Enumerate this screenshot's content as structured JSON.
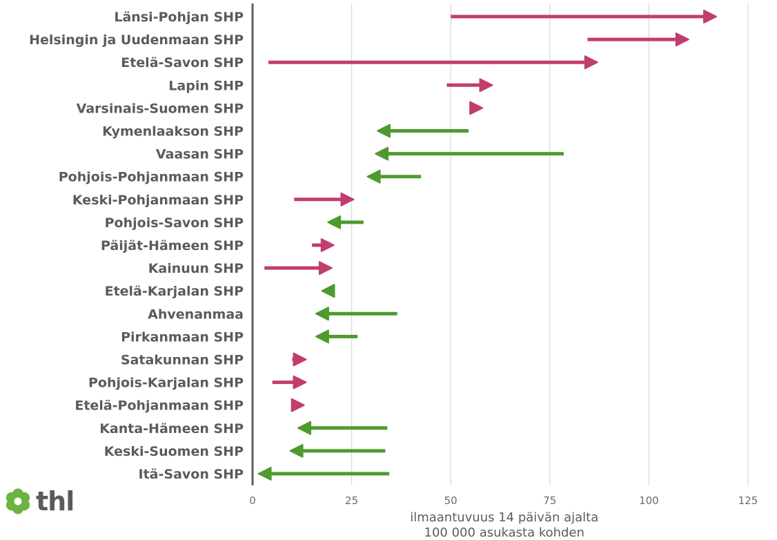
{
  "logo": {
    "text": "thl",
    "icon": "flower-icon",
    "color": "#6cb33f"
  },
  "colors": {
    "increase": "#c13d6f",
    "decrease": "#4f9a2e",
    "axis": "#5f5f5f",
    "grid": "#d9d9d9",
    "text": "#5b5b5b"
  },
  "chart_data": {
    "type": "arrow",
    "xlabel": "ilmaantuvuus 14 päivän ajalta\n100 000 asukasta kohden",
    "xlim": [
      0,
      125
    ],
    "xticks": [
      0,
      25,
      50,
      75,
      100,
      125
    ],
    "grid": true,
    "series": [
      {
        "category": "Länsi-Pohjan SHP",
        "from": 50,
        "to": 117
      },
      {
        "category": "Helsingin ja Uudenmaan SHP",
        "from": 84.5,
        "to": 110
      },
      {
        "category": "Etelä-Savon SHP",
        "from": 4,
        "to": 87
      },
      {
        "category": "Lapin SHP",
        "from": 49,
        "to": 60.5
      },
      {
        "category": "Varsinais-Suomen SHP",
        "from": 55.5,
        "to": 58
      },
      {
        "category": "Kymenlaakson SHP",
        "from": 54.5,
        "to": 31.5
      },
      {
        "category": "Vaasan SHP",
        "from": 78.5,
        "to": 31
      },
      {
        "category": "Pohjois-Pohjanmaan SHP",
        "from": 42.5,
        "to": 29
      },
      {
        "category": "Keski-Pohjanmaan SHP",
        "from": 10.5,
        "to": 25.5
      },
      {
        "category": "Pohjois-Savon SHP",
        "from": 28,
        "to": 19
      },
      {
        "category": "Päijät-Hämeen SHP",
        "from": 15,
        "to": 20.5
      },
      {
        "category": "Kainuun SHP",
        "from": 3,
        "to": 20
      },
      {
        "category": "Etelä-Karjalan SHP",
        "from": 20,
        "to": 17.5
      },
      {
        "category": "Ahvenanmaa",
        "from": 36.5,
        "to": 16
      },
      {
        "category": "Pirkanmaan SHP",
        "from": 26.5,
        "to": 16
      },
      {
        "category": "Satakunnan SHP",
        "from": 10,
        "to": 13.5
      },
      {
        "category": "Pohjois-Karjalan SHP",
        "from": 5,
        "to": 13.5
      },
      {
        "category": "Etelä-Pohjanmaan SHP",
        "from": 10,
        "to": 13
      },
      {
        "category": "Kanta-Hämeen SHP",
        "from": 34,
        "to": 11.5
      },
      {
        "category": "Keski-Suomen SHP",
        "from": 33.5,
        "to": 9.5
      },
      {
        "category": "Itä-Savon SHP",
        "from": 34.5,
        "to": 1.5
      }
    ]
  }
}
